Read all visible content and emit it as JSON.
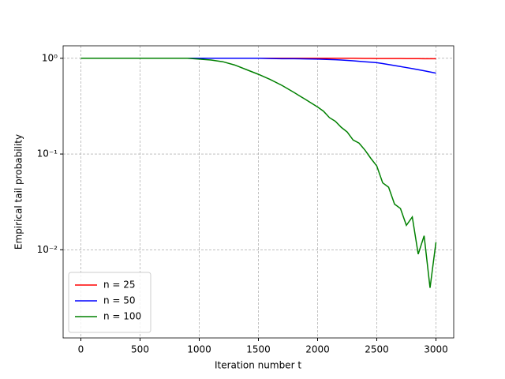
{
  "chart_data": {
    "type": "line",
    "xlabel": "Iteration number t",
    "ylabel": "Empirical tail probability",
    "x": [
      0,
      100,
      200,
      300,
      400,
      500,
      600,
      700,
      800,
      900,
      1000,
      1100,
      1200,
      1300,
      1400,
      1500,
      1600,
      1700,
      1800,
      1900,
      2000,
      2050,
      2100,
      2150,
      2200,
      2250,
      2300,
      2350,
      2400,
      2450,
      2500,
      2550,
      2600,
      2650,
      2700,
      2750,
      2800,
      2850,
      2900,
      2950,
      3000
    ],
    "series": [
      {
        "name": "n = 25",
        "color": "#ff0000",
        "values": [
          1,
          1,
          1,
          1,
          1,
          1,
          1,
          1,
          1,
          1,
          1,
          1,
          1,
          1,
          1,
          1,
          1,
          1,
          1,
          1,
          1,
          1,
          1,
          1,
          1,
          1,
          1,
          0.998,
          0.997,
          0.996,
          0.995,
          0.995,
          0.994,
          0.993,
          0.993,
          0.992,
          0.992,
          0.991,
          0.99,
          0.99,
          0.99
        ]
      },
      {
        "name": "n = 50",
        "color": "#0000ff",
        "values": [
          1,
          1,
          1,
          1,
          1,
          1,
          1,
          1,
          1,
          1,
          1,
          1,
          1,
          1,
          1,
          1,
          0.995,
          0.99,
          0.99,
          0.985,
          0.98,
          0.975,
          0.97,
          0.965,
          0.96,
          0.95,
          0.94,
          0.93,
          0.92,
          0.91,
          0.9,
          0.88,
          0.86,
          0.84,
          0.82,
          0.8,
          0.78,
          0.76,
          0.74,
          0.72,
          0.7
        ]
      },
      {
        "name": "n = 100",
        "color": "#008000",
        "values": [
          1,
          1,
          1,
          1,
          1,
          1,
          1,
          1,
          1,
          1,
          0.98,
          0.96,
          0.92,
          0.85,
          0.76,
          0.68,
          0.6,
          0.52,
          0.44,
          0.37,
          0.31,
          0.28,
          0.24,
          0.22,
          0.19,
          0.17,
          0.14,
          0.13,
          0.11,
          0.09,
          0.075,
          0.05,
          0.045,
          0.03,
          0.027,
          0.018,
          0.022,
          0.009,
          0.014,
          0.004,
          0.012
        ]
      }
    ],
    "xlim": [
      -150,
      3150
    ],
    "xticks": [
      0,
      500,
      1000,
      1500,
      2000,
      2500,
      3000
    ],
    "ylim": [
      0.0012,
      1.35
    ],
    "yticks": [
      {
        "value": 1,
        "label": "10⁰"
      },
      {
        "value": 0.1,
        "label": "10⁻¹"
      },
      {
        "value": 0.01,
        "label": "10⁻²"
      }
    ],
    "yscale": "log",
    "grid": true,
    "legend": "lower left"
  }
}
